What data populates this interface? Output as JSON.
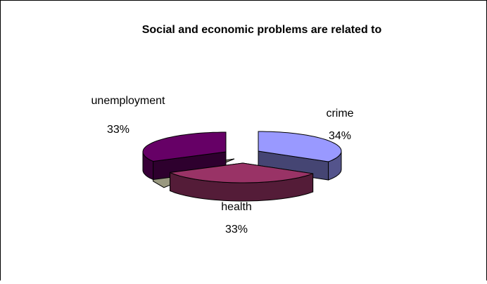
{
  "chart_data": {
    "type": "pie",
    "title": "Social and economic problems are related to",
    "categories": [
      "crime",
      "health",
      "unemployment"
    ],
    "values": [
      34,
      33,
      33
    ],
    "value_labels": [
      "34%",
      "33%",
      "33%"
    ],
    "exploded": true,
    "three_d": true,
    "legend": "none",
    "colors": {
      "crime": "#9999ff",
      "health": "#993366",
      "unemployment": "#660066",
      "extra_wedge": "#ccccaa"
    }
  }
}
